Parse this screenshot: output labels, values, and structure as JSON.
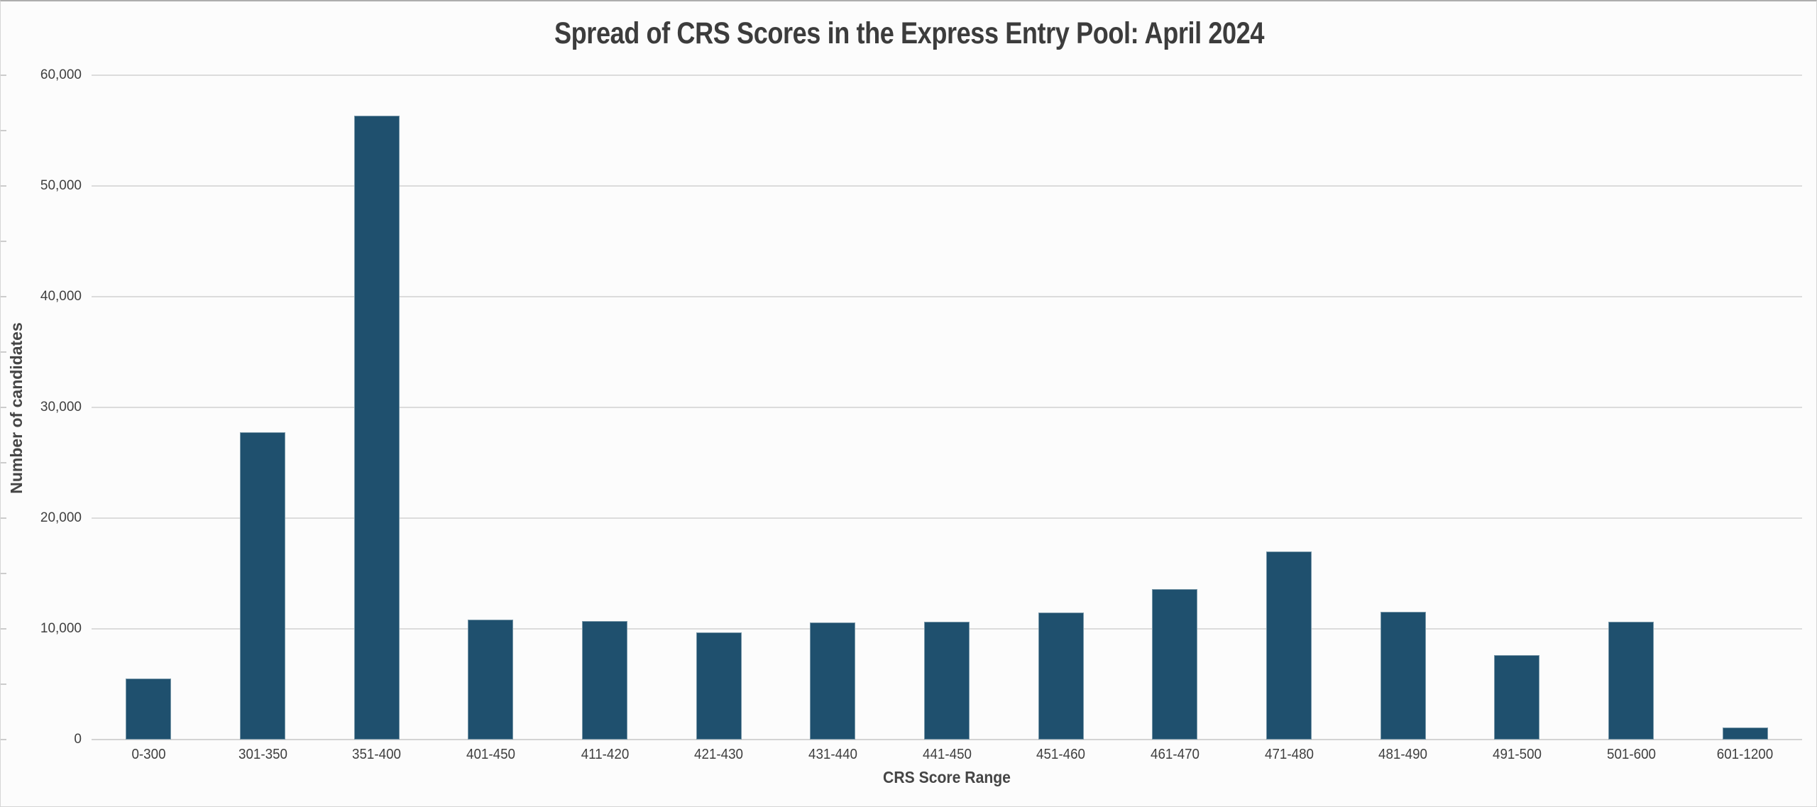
{
  "chart_data": {
    "type": "bar",
    "title": "Spread of CRS Scores in the Express Entry Pool: April 2024",
    "xlabel": "CRS Score Range",
    "ylabel": "Number of candidates",
    "categories": [
      "0-300",
      "301-350",
      "351-400",
      "401-450",
      "411-420",
      "421-430",
      "431-440",
      "441-450",
      "451-460",
      "461-470",
      "471-480",
      "481-490",
      "491-500",
      "501-600",
      "601-1200"
    ],
    "values": [
      5519,
      27730,
      56373,
      10845,
      10676,
      9671,
      10548,
      10657,
      11450,
      13582,
      16973,
      11544,
      7640,
      10613,
      1104
    ],
    "ylim": [
      0,
      60000
    ],
    "ytick_step": 10000,
    "yminor_step": 5000,
    "grid": true,
    "legend": false,
    "bar_color": "#1f506e",
    "grid_color": "#dcdcdc",
    "text_color": "#3f3f3f",
    "background": "#fcfcfc"
  }
}
